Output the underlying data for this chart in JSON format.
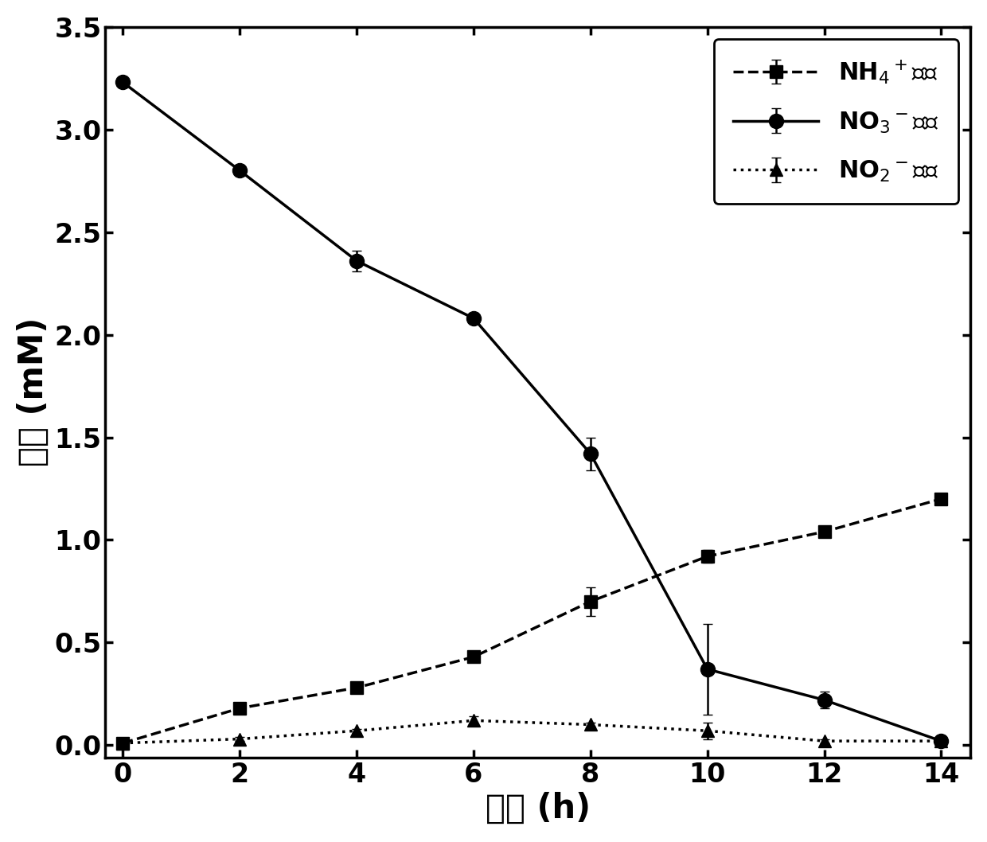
{
  "x": [
    0,
    2,
    4,
    6,
    8,
    10,
    12,
    14
  ],
  "nh4_y": [
    0.01,
    0.18,
    0.28,
    0.43,
    0.7,
    0.92,
    1.04,
    1.2
  ],
  "nh4_err": [
    0.0,
    0.02,
    0.02,
    0.02,
    0.07,
    0.03,
    0.02,
    0.02
  ],
  "no3_y": [
    3.23,
    2.8,
    2.36,
    2.08,
    1.42,
    0.37,
    0.22,
    0.02
  ],
  "no3_err": [
    0.0,
    0.0,
    0.05,
    0.0,
    0.08,
    0.22,
    0.04,
    0.01
  ],
  "no2_y": [
    0.01,
    0.03,
    0.07,
    0.12,
    0.1,
    0.07,
    0.02,
    0.02
  ],
  "no2_err": [
    0.0,
    0.01,
    0.01,
    0.02,
    0.01,
    0.04,
    0.01,
    0.01
  ],
  "xlabel_math": "\\u65f6\\u95f4",
  "ylabel_math": "\\u6d53\\u5ea6",
  "xlim": [
    -0.3,
    14.5
  ],
  "ylim": [
    -0.06,
    3.5
  ],
  "xticks": [
    0,
    2,
    4,
    6,
    8,
    10,
    12,
    14
  ],
  "yticks": [
    0.0,
    0.5,
    1.0,
    1.5,
    2.0,
    2.5,
    3.0,
    3.5
  ],
  "line_color": "#000000",
  "marker_size": 11,
  "linewidth": 2.5,
  "capsize": 4,
  "elinewidth": 1.8,
  "font_size_label": 30,
  "font_size_tick": 24,
  "font_size_legend": 22
}
